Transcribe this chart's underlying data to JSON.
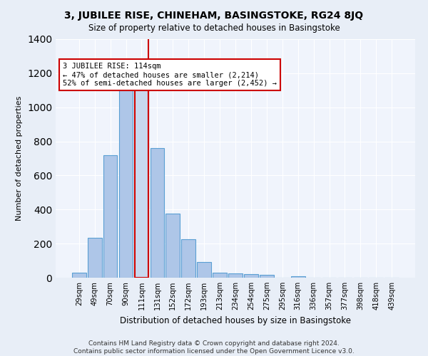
{
  "title1": "3, JUBILEE RISE, CHINEHAM, BASINGSTOKE, RG24 8JQ",
  "title2": "Size of property relative to detached houses in Basingstoke",
  "xlabel": "Distribution of detached houses by size in Basingstoke",
  "ylabel": "Number of detached properties",
  "footnote1": "Contains HM Land Registry data © Crown copyright and database right 2024.",
  "footnote2": "Contains public sector information licensed under the Open Government Licence v3.0.",
  "bar_labels": [
    "29sqm",
    "49sqm",
    "70sqm",
    "90sqm",
    "111sqm",
    "131sqm",
    "152sqm",
    "172sqm",
    "193sqm",
    "213sqm",
    "234sqm",
    "254sqm",
    "275sqm",
    "295sqm",
    "316sqm",
    "336sqm",
    "357sqm",
    "377sqm",
    "398sqm",
    "418sqm",
    "439sqm"
  ],
  "bar_values": [
    30,
    235,
    720,
    1110,
    1130,
    760,
    375,
    225,
    90,
    30,
    25,
    20,
    15,
    0,
    10,
    0,
    0,
    0,
    0,
    0,
    0
  ],
  "bar_color": "#aec6e8",
  "bar_edgecolor": "#5a9fd4",
  "highlight_bar_index": 4,
  "highlight_color": "#c8d8ee",
  "highlight_edgecolor": "#cc0000",
  "vline_color": "#cc0000",
  "annotation_text": "3 JUBILEE RISE: 114sqm\n← 47% of detached houses are smaller (2,214)\n52% of semi-detached houses are larger (2,452) →",
  "annotation_box_color": "#ffffff",
  "annotation_box_edgecolor": "#cc0000",
  "ylim": [
    0,
    1400
  ],
  "yticks": [
    0,
    200,
    400,
    600,
    800,
    1000,
    1200,
    1400
  ],
  "bg_color": "#e8eef7",
  "plot_bg_color": "#f0f4fc",
  "grid_color": "#ffffff"
}
